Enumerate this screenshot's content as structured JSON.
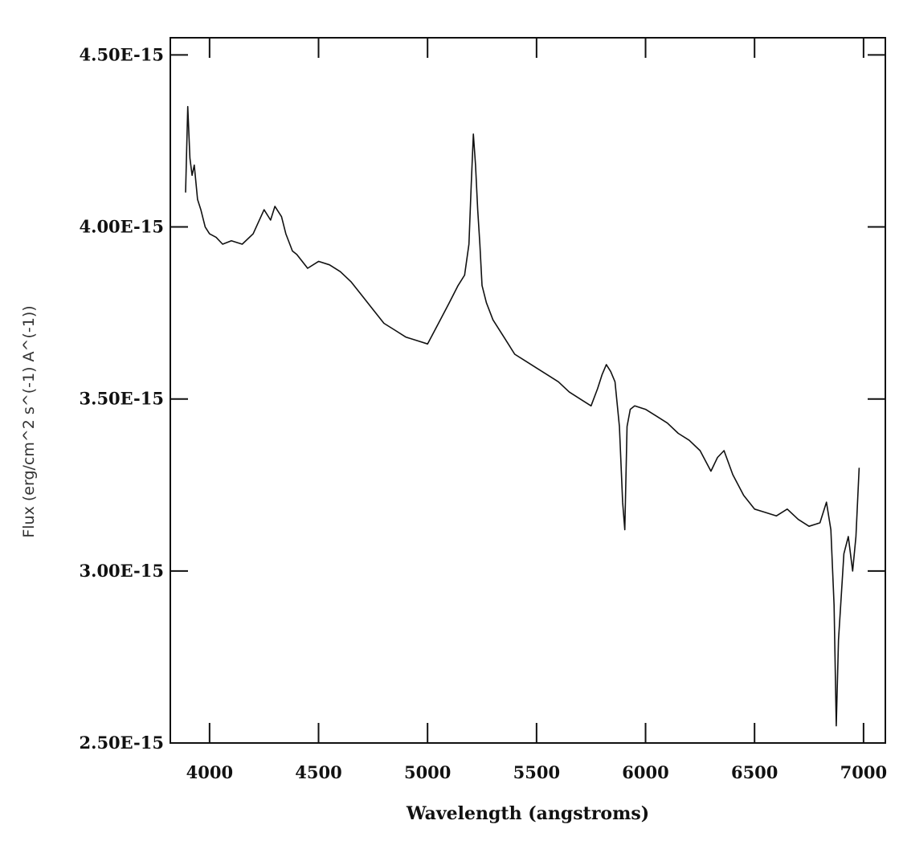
{
  "chart_data": {
    "type": "line",
    "title": "",
    "xlabel": "Wavelength (angstroms)",
    "ylabel": "Flux (erg/cm^2 s^(-1) A^(-1))",
    "xlim": [
      3820,
      7100
    ],
    "ylim": [
      2.5e-15,
      4.55e-15
    ],
    "x_ticks": [
      4000,
      4500,
      5000,
      5500,
      6000,
      6500,
      7000
    ],
    "x_tick_labels": [
      "4000",
      "4500",
      "5000",
      "5500",
      "6000",
      "6500",
      "7000"
    ],
    "y_ticks": [
      2.5e-15,
      3e-15,
      3.5e-15,
      4e-15,
      4.5e-15
    ],
    "y_tick_labels": [
      "2.50E-15",
      "3.00E-15",
      "3.50E-15",
      "4.00E-15",
      "4.50E-15"
    ],
    "grid": false,
    "series": [
      {
        "name": "",
        "color": "#111111",
        "x": [
          3890,
          3900,
          3910,
          3920,
          3930,
          3945,
          3960,
          3980,
          4000,
          4030,
          4060,
          4100,
          4150,
          4200,
          4250,
          4280,
          4300,
          4330,
          4350,
          4380,
          4400,
          4450,
          4500,
          4550,
          4600,
          4650,
          4700,
          4750,
          4800,
          4850,
          4900,
          4950,
          5000,
          5050,
          5100,
          5140,
          5170,
          5190,
          5200,
          5210,
          5220,
          5230,
          5240,
          5250,
          5270,
          5300,
          5350,
          5400,
          5450,
          5500,
          5550,
          5600,
          5650,
          5700,
          5750,
          5780,
          5800,
          5820,
          5840,
          5860,
          5880,
          5895,
          5905,
          5915,
          5930,
          5950,
          6000,
          6050,
          6100,
          6150,
          6200,
          6250,
          6300,
          6330,
          6360,
          6400,
          6450,
          6500,
          6550,
          6600,
          6650,
          6700,
          6750,
          6800,
          6830,
          6850,
          6865,
          6875,
          6885,
          6895,
          6910,
          6930,
          6950,
          6965,
          6980
        ],
        "y": [
          4.1e-15,
          4.35e-15,
          4.2e-15,
          4.15e-15,
          4.18e-15,
          4.08e-15,
          4.05e-15,
          4e-15,
          3.98e-15,
          3.97e-15,
          3.95e-15,
          3.96e-15,
          3.95e-15,
          3.98e-15,
          4.05e-15,
          4.02e-15,
          4.06e-15,
          4.03e-15,
          3.98e-15,
          3.93e-15,
          3.92e-15,
          3.88e-15,
          3.9e-15,
          3.89e-15,
          3.87e-15,
          3.84e-15,
          3.8e-15,
          3.76e-15,
          3.72e-15,
          3.7e-15,
          3.68e-15,
          3.67e-15,
          3.66e-15,
          3.72e-15,
          3.78e-15,
          3.83e-15,
          3.86e-15,
          3.95e-15,
          4.12e-15,
          4.27e-15,
          4.18e-15,
          4.05e-15,
          3.95e-15,
          3.83e-15,
          3.78e-15,
          3.73e-15,
          3.68e-15,
          3.63e-15,
          3.61e-15,
          3.59e-15,
          3.57e-15,
          3.55e-15,
          3.52e-15,
          3.5e-15,
          3.48e-15,
          3.53e-15,
          3.57e-15,
          3.6e-15,
          3.58e-15,
          3.55e-15,
          3.42e-15,
          3.2e-15,
          3.12e-15,
          3.42e-15,
          3.47e-15,
          3.48e-15,
          3.47e-15,
          3.45e-15,
          3.43e-15,
          3.4e-15,
          3.38e-15,
          3.35e-15,
          3.29e-15,
          3.33e-15,
          3.35e-15,
          3.28e-15,
          3.22e-15,
          3.18e-15,
          3.17e-15,
          3.16e-15,
          3.18e-15,
          3.15e-15,
          3.13e-15,
          3.14e-15,
          3.2e-15,
          3.12e-15,
          2.9e-15,
          2.55e-15,
          2.8e-15,
          2.9e-15,
          3.05e-15,
          3.1e-15,
          3e-15,
          3.1e-15,
          3.3e-15
        ]
      }
    ]
  }
}
